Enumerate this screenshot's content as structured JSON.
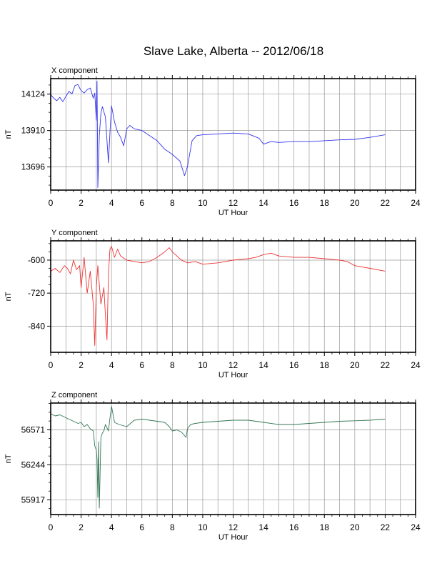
{
  "title": "Slave Lake, Alberta -- 2012/06/18",
  "chart_data": [
    {
      "type": "line",
      "title": "X component",
      "xlabel": "UT Hour",
      "ylabel": "nT",
      "xlim": [
        0,
        24
      ],
      "ylim": [
        13560,
        14215
      ],
      "xticks": [
        0,
        2,
        4,
        6,
        8,
        10,
        12,
        14,
        16,
        18,
        20,
        22,
        24
      ],
      "yticks": [
        13696,
        13910,
        14124
      ],
      "grid": true,
      "color": "#3333ee",
      "series": [
        {
          "x": [
            0,
            0.2,
            0.4,
            0.6,
            0.8,
            1.0,
            1.2,
            1.4,
            1.6,
            1.8,
            1.9,
            2.0,
            2.2,
            2.4,
            2.6,
            2.8,
            2.9,
            3.0,
            3.05,
            3.1,
            3.2,
            3.3,
            3.4,
            3.6,
            3.8,
            3.9,
            4.0,
            4.2,
            4.4,
            4.6,
            4.8,
            5.0,
            5.2,
            5.5,
            6.0,
            6.5,
            7.0,
            7.5,
            8.0,
            8.5,
            8.8,
            9.0,
            9.3,
            9.6,
            10,
            11,
            12,
            13,
            13.7,
            14.0,
            14.5,
            15,
            16,
            17,
            18,
            19,
            20,
            21,
            22
          ],
          "values": [
            14120,
            14100,
            14085,
            14105,
            14080,
            14110,
            14140,
            14125,
            14175,
            14180,
            14160,
            14145,
            14130,
            14150,
            14160,
            14100,
            14130,
            13970,
            14200,
            13575,
            13880,
            14010,
            14050,
            13990,
            13720,
            13900,
            14055,
            13960,
            13900,
            13870,
            13820,
            13920,
            13940,
            13920,
            13910,
            13880,
            13850,
            13800,
            13770,
            13730,
            13645,
            13700,
            13850,
            13880,
            13885,
            13890,
            13895,
            13890,
            13865,
            13830,
            13845,
            13840,
            13845,
            13845,
            13850,
            13855,
            13858,
            13870,
            13885
          ]
        }
      ]
    },
    {
      "type": "line",
      "title": "Y component",
      "xlabel": "UT Hour",
      "ylabel": "nT",
      "xlim": [
        0,
        24
      ],
      "ylim": [
        -935,
        -530
      ],
      "xticks": [
        0,
        2,
        4,
        6,
        8,
        10,
        12,
        14,
        16,
        18,
        20,
        22,
        24
      ],
      "yticks": [
        -600,
        -720,
        -840
      ],
      "grid": true,
      "color": "#ee3333",
      "series": [
        {
          "x": [
            0,
            0.3,
            0.6,
            0.9,
            1.1,
            1.3,
            1.5,
            1.7,
            1.9,
            2.0,
            2.2,
            2.4,
            2.6,
            2.8,
            2.9,
            3.0,
            3.1,
            3.3,
            3.5,
            3.6,
            3.7,
            3.8,
            3.9,
            4.0,
            4.2,
            4.4,
            4.6,
            5.0,
            5.5,
            6.0,
            6.5,
            7.0,
            7.5,
            7.8,
            8.0,
            8.3,
            8.6,
            9.0,
            9.5,
            10,
            11,
            12,
            13,
            13.5,
            14.0,
            14.5,
            15,
            16,
            17,
            18,
            19,
            19.5,
            20,
            21,
            22
          ],
          "values": [
            -640,
            -630,
            -645,
            -620,
            -630,
            -650,
            -600,
            -635,
            -620,
            -700,
            -590,
            -720,
            -640,
            -760,
            -910,
            -700,
            -620,
            -760,
            -700,
            -800,
            -890,
            -650,
            -560,
            -550,
            -590,
            -560,
            -585,
            -600,
            -605,
            -610,
            -605,
            -590,
            -570,
            -555,
            -570,
            -585,
            -600,
            -610,
            -605,
            -615,
            -610,
            -600,
            -595,
            -590,
            -580,
            -575,
            -585,
            -590,
            -590,
            -595,
            -600,
            -605,
            -620,
            -630,
            -640
          ]
        }
      ]
    },
    {
      "type": "line",
      "title": "Z component",
      "xlabel": "UT Hour",
      "ylabel": "nT",
      "xlim": [
        0,
        24
      ],
      "ylim": [
        55780,
        56820
      ],
      "xticks": [
        0,
        2,
        4,
        6,
        8,
        10,
        12,
        14,
        16,
        18,
        20,
        22,
        24
      ],
      "yticks": [
        55917,
        56244,
        56571
      ],
      "grid": true,
      "color": "#337755",
      "series": [
        {
          "x": [
            0,
            0.3,
            0.6,
            0.9,
            1.2,
            1.5,
            1.8,
            2.0,
            2.2,
            2.4,
            2.6,
            2.8,
            2.9,
            3.0,
            3.05,
            3.1,
            3.15,
            3.2,
            3.3,
            3.4,
            3.5,
            3.6,
            3.8,
            3.9,
            4.0,
            4.2,
            4.5,
            5.0,
            5.5,
            6.0,
            6.5,
            7.0,
            7.5,
            7.8,
            8.0,
            8.3,
            8.6,
            8.9,
            9.0,
            9.2,
            9.5,
            10,
            11,
            12,
            13,
            14,
            15,
            16,
            17,
            18,
            19,
            20,
            21,
            22
          ],
          "values": [
            56720,
            56700,
            56710,
            56690,
            56670,
            56650,
            56630,
            56640,
            56600,
            56620,
            56580,
            56560,
            56420,
            56380,
            56300,
            55940,
            56460,
            55840,
            56500,
            56540,
            56560,
            56620,
            56560,
            56680,
            56790,
            56640,
            56620,
            56600,
            56660,
            56670,
            56660,
            56650,
            56640,
            56600,
            56560,
            56570,
            56550,
            56500,
            56580,
            56620,
            56630,
            56640,
            56650,
            56660,
            56660,
            56640,
            56620,
            56620,
            56630,
            56640,
            56650,
            56655,
            56660,
            56670
          ]
        }
      ]
    }
  ]
}
